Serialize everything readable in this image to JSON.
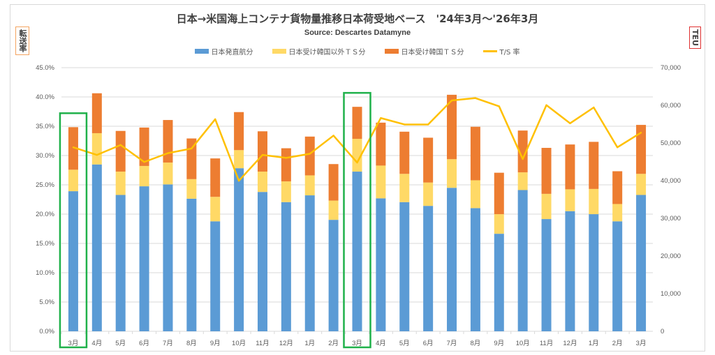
{
  "chart_data": {
    "type": "bar",
    "stacked": true,
    "title": "日本→米国海上コンテナ貨物量推移日本荷受地ベース　'24年3月～'26年3月",
    "subtitle": "Source: Descartes Datamyne",
    "ylabel_left": "転送率",
    "ylabel_right": "TEU",
    "categories": [
      "3月",
      "4月",
      "5月",
      "6月",
      "7月",
      "8月",
      "9月",
      "10月",
      "11月",
      "12月",
      "1月",
      "2月",
      "3月",
      "4月",
      "5月",
      "6月",
      "7月",
      "8月",
      "9月",
      "10月",
      "11月",
      "12月",
      "1月",
      "2月",
      "3月"
    ],
    "highlighted_categories": [
      0,
      12
    ],
    "series": [
      {
        "name": "日本発直航分",
        "axis": "right",
        "type": "bar",
        "color": "#5b9bd5",
        "values": [
          37200,
          44300,
          36200,
          38500,
          39000,
          35200,
          29200,
          43300,
          37000,
          34300,
          36100,
          29600,
          42400,
          35300,
          34300,
          33300,
          38100,
          32700,
          25900,
          37500,
          29800,
          31900,
          31100,
          29200,
          36200
        ]
      },
      {
        "name": "日本受け韓国以外ＴＳ分",
        "axis": "right",
        "type": "bar",
        "color": "#ffd966",
        "values": [
          5700,
          8300,
          6200,
          5400,
          5800,
          5200,
          6500,
          4800,
          5400,
          5500,
          5300,
          5100,
          8700,
          8700,
          7500,
          6200,
          7600,
          7400,
          5200,
          4700,
          6700,
          5800,
          6700,
          4600,
          5600
        ]
      },
      {
        "name": "日本受け韓国ＴＳ分",
        "axis": "right",
        "type": "bar",
        "color": "#ed7d31",
        "values": [
          11300,
          10600,
          10800,
          10200,
          11300,
          10800,
          10200,
          10100,
          10700,
          8800,
          10300,
          9700,
          8500,
          11400,
          11200,
          11900,
          17100,
          14200,
          11000,
          11100,
          12200,
          11900,
          12500,
          8700,
          13000
        ]
      },
      {
        "name": "T/S 率",
        "axis": "left",
        "type": "line",
        "color": "#ffc000",
        "values": [
          31.4,
          30.1,
          31.8,
          28.9,
          30.4,
          31.2,
          36.2,
          25.7,
          30.1,
          29.6,
          30.3,
          33.4,
          28.8,
          36.4,
          35.3,
          35.3,
          39.4,
          39.8,
          38.4,
          29.4,
          38.6,
          35.5,
          38.2,
          31.4,
          33.9
        ]
      }
    ],
    "y_left": {
      "range": [
        0,
        45
      ],
      "ticks": [
        "0.0%",
        "5.0%",
        "10.0%",
        "15.0%",
        "20.0%",
        "25.0%",
        "30.0%",
        "35.0%",
        "40.0%",
        "45.0%"
      ]
    },
    "y_right": {
      "range": [
        0,
        70000
      ],
      "ticks": [
        "0",
        "10,000",
        "20,000",
        "30,000",
        "40,000",
        "50,000",
        "60,000",
        "70,000"
      ]
    },
    "grid": true,
    "legend_position": "top"
  }
}
